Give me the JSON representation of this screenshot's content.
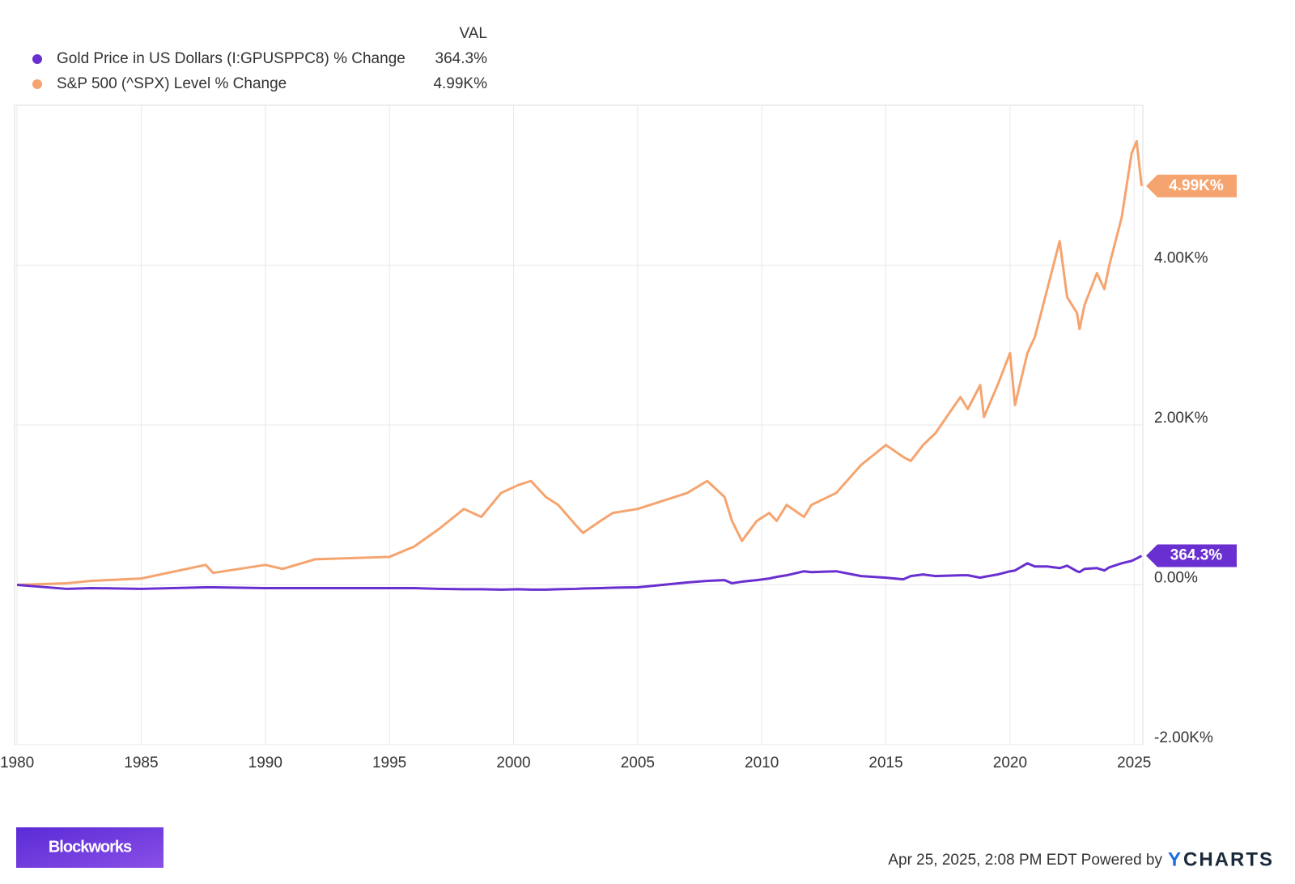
{
  "chart_data": {
    "type": "line",
    "legend_header": "VAL",
    "x": [
      1980,
      1982,
      1983,
      1985,
      1987.6,
      1987.9,
      1990,
      1990.7,
      1992,
      1995,
      1996,
      1997,
      1998,
      1998.7,
      1999.5,
      2000.2,
      2000.7,
      2001.3,
      2001.8,
      2002.5,
      2002.8,
      2003.5,
      2004,
      2005,
      2006,
      2007,
      2007.8,
      2008.5,
      2008.8,
      2009.2,
      2009.8,
      2010.3,
      2010.6,
      2011,
      2011.7,
      2012,
      2013,
      2014,
      2015,
      2015.7,
      2016,
      2016.5,
      2017,
      2018,
      2018.3,
      2018.8,
      2018.95,
      2019.5,
      2020,
      2020.2,
      2020.7,
      2021,
      2021.5,
      2022,
      2022.3,
      2022.7,
      2022.8,
      2023,
      2023.5,
      2023.8,
      2024,
      2024.5,
      2024.9,
      2025.1,
      2025.3
    ],
    "series": [
      {
        "name": "Gold Price in US Dollars (I:GPUSPPC8) % Change",
        "color": "#6a2fd0",
        "end_label": "364.3%",
        "values": [
          0,
          -50,
          -40,
          -50,
          -30,
          -30,
          -40,
          -40,
          -40,
          -40,
          -40,
          -50,
          -55,
          -55,
          -60,
          -55,
          -60,
          -60,
          -55,
          -50,
          -45,
          -40,
          -35,
          -30,
          0,
          30,
          50,
          60,
          20,
          40,
          60,
          80,
          100,
          120,
          170,
          160,
          170,
          110,
          90,
          70,
          110,
          130,
          110,
          120,
          120,
          90,
          100,
          130,
          170,
          180,
          270,
          230,
          230,
          210,
          240,
          170,
          160,
          200,
          210,
          180,
          220,
          270,
          300,
          330,
          364.3
        ]
      },
      {
        "name": "S&P 500 (^SPX) Level % Change",
        "color": "#f5a46f",
        "end_label": "4.99K%",
        "values": [
          0,
          20,
          50,
          80,
          250,
          150,
          250,
          200,
          320,
          350,
          480,
          700,
          950,
          850,
          1150,
          1250,
          1300,
          1100,
          1000,
          750,
          650,
          800,
          900,
          950,
          1050,
          1150,
          1300,
          1100,
          800,
          550,
          800,
          900,
          800,
          1000,
          850,
          1000,
          1150,
          1500,
          1750,
          1600,
          1550,
          1750,
          1900,
          2350,
          2200,
          2500,
          2100,
          2500,
          2900,
          2250,
          2900,
          3100,
          3700,
          4300,
          3600,
          3400,
          3200,
          3500,
          3900,
          3700,
          4000,
          4600,
          5400,
          5550,
          4990
        ]
      }
    ],
    "xlim": [
      1979.9,
      2025.35
    ],
    "xticks": [
      1980,
      1985,
      1990,
      1995,
      2000,
      2005,
      2010,
      2015,
      2020,
      2025
    ],
    "ylim": [
      -2000,
      6000
    ],
    "yticks": [
      {
        "value": -2000,
        "label": "-2.00K%"
      },
      {
        "value": 0,
        "label": "0.00%"
      },
      {
        "value": 2000,
        "label": "2.00K%"
      },
      {
        "value": 4000,
        "label": "4.00K%"
      }
    ],
    "grid": true,
    "footer": "Apr 25, 2025, 2:08 PM EDT Powered by",
    "logo_y": "Y",
    "logo_rest": "CHARTS",
    "brand": "Blockworks"
  }
}
